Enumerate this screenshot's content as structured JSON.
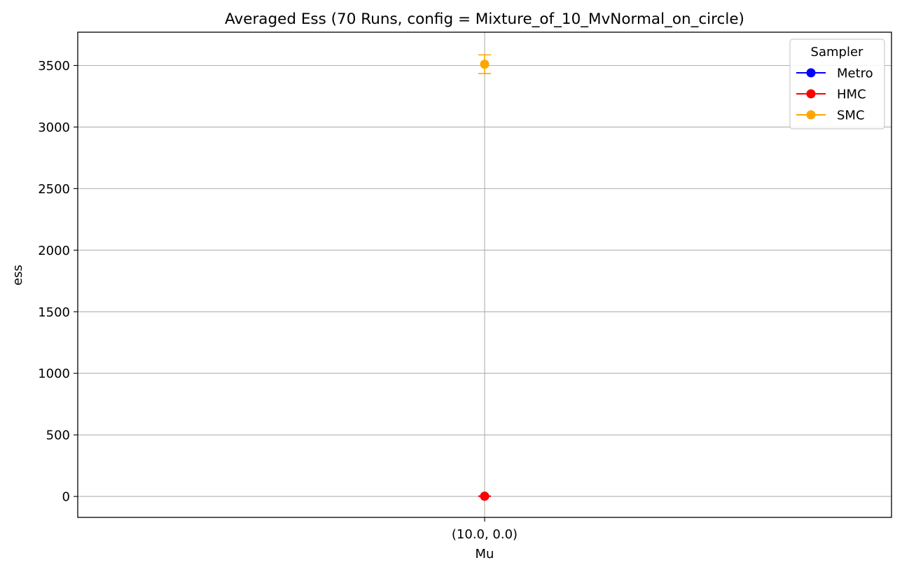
{
  "chart_data": {
    "type": "scatter",
    "title": "Averaged Ess (70 Runs, config = Mixture_of_10_MvNormal_on_circle)",
    "xlabel": "Mu",
    "ylabel": "ess",
    "categories": [
      "(10.0, 0.0)"
    ],
    "ylim": [
      -170,
      3770
    ],
    "yticks": [
      0,
      500,
      1000,
      1500,
      2000,
      2500,
      3000,
      3500
    ],
    "grid": true,
    "legend": {
      "title": "Sampler",
      "placement": "top-right"
    },
    "series": [
      {
        "name": "Metro",
        "color": "#0000ff",
        "values": [
          2
        ],
        "errors": [
          0.5
        ]
      },
      {
        "name": "HMC",
        "color": "#ff0000",
        "values": [
          2
        ],
        "errors": [
          1.5
        ]
      },
      {
        "name": "SMC",
        "color": "#ffa500",
        "values": [
          3510
        ],
        "errors": [
          76
        ]
      }
    ]
  }
}
